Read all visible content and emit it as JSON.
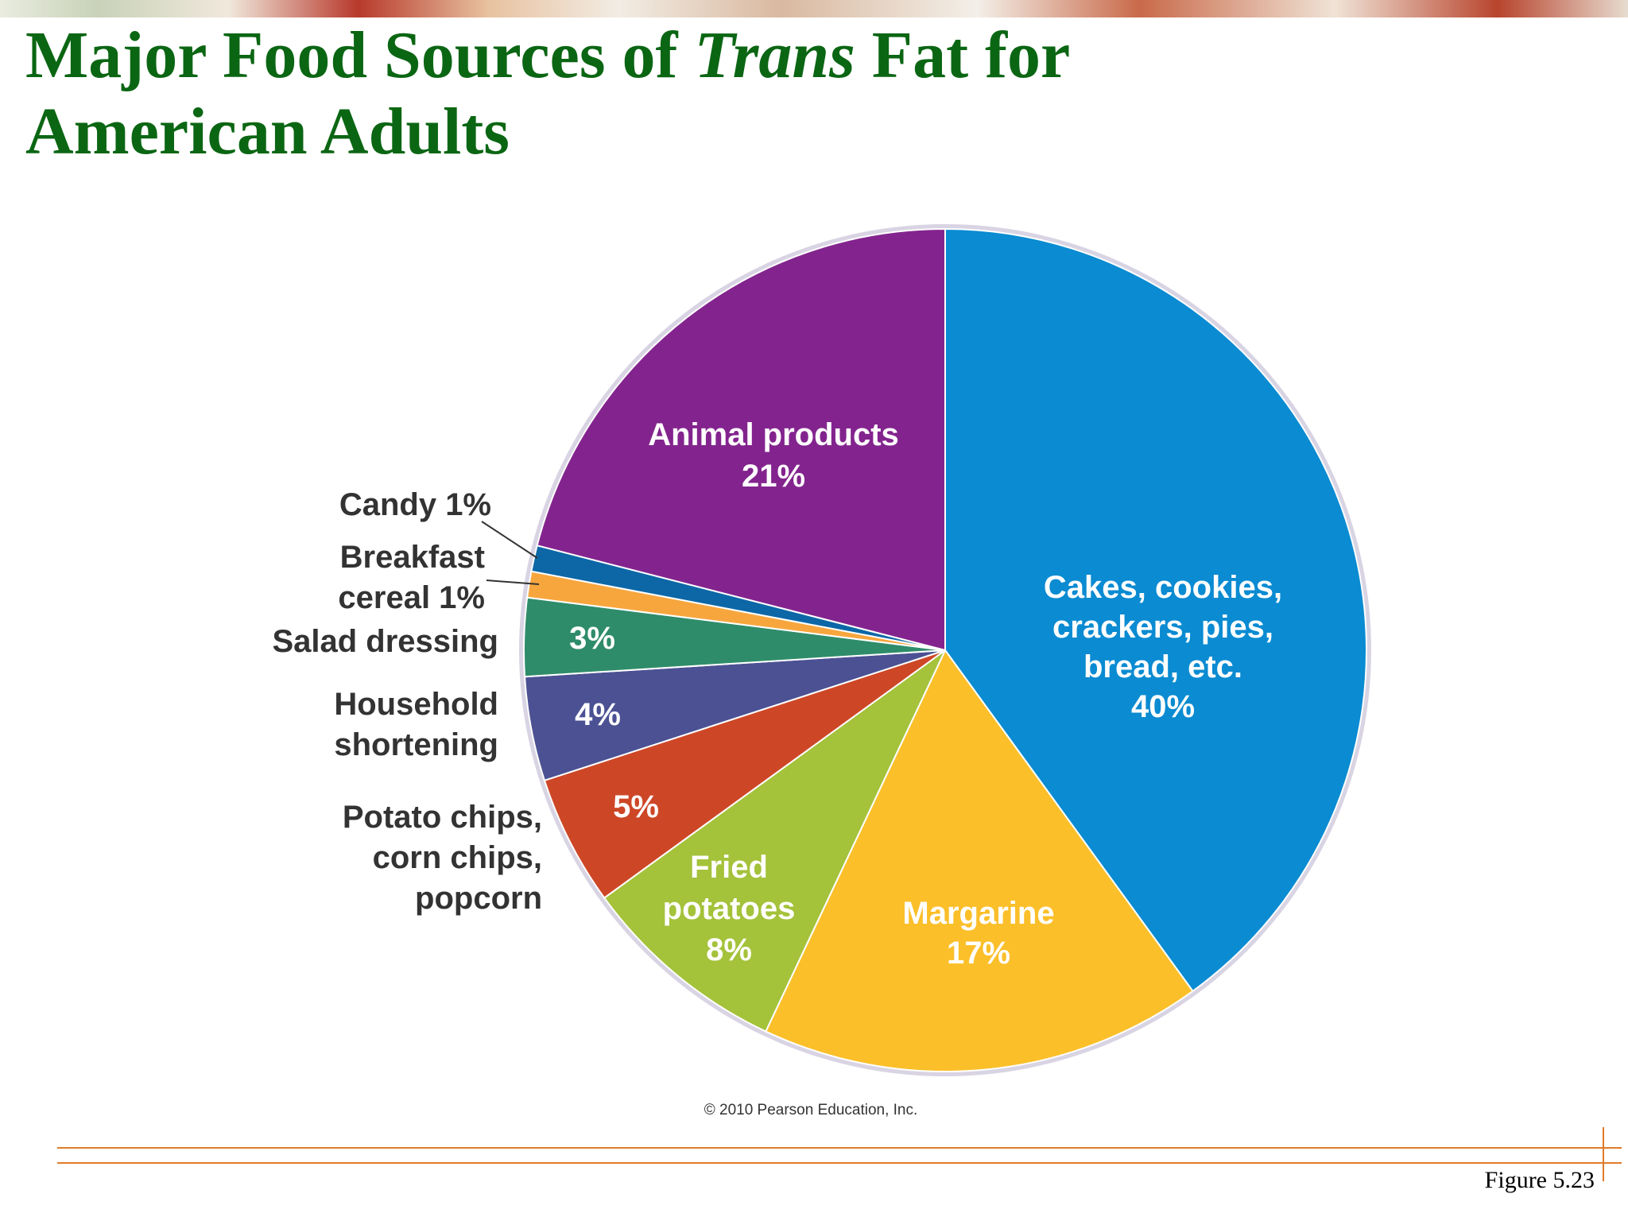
{
  "page": {
    "title_prefix": "Major Food Sources of ",
    "title_italic": "Trans",
    "title_suffix": " Fat for American Adults",
    "copyright": "© 2010 Pearson Education, Inc.",
    "figure_label": "Figure 5.23",
    "title_color": "#0b6613",
    "rule_color": "#e07b2a"
  },
  "chart_data": {
    "type": "pie",
    "title": "Major Food Sources of Trans Fat for American Adults",
    "start": "12 o'clock",
    "direction": "clockwise",
    "slices": [
      {
        "label": "Cakes, cookies, crackers, pies, bread, etc.",
        "lines": [
          "Cakes, cookies,",
          "crackers, pies,",
          "bread, etc."
        ],
        "value": 40,
        "value_label": "40%",
        "color": "#0a8bd2",
        "label_position": "inside"
      },
      {
        "label": "Margarine",
        "lines": [
          "Margarine"
        ],
        "value": 17,
        "value_label": "17%",
        "color": "#fbbf2a",
        "label_position": "inside"
      },
      {
        "label": "Fried potatoes",
        "lines": [
          "Fried",
          "potatoes"
        ],
        "value": 8,
        "value_label": "8%",
        "color": "#a4c23a",
        "label_position": "inside"
      },
      {
        "label": "Potato chips, corn chips, popcorn",
        "lines": [
          "Potato chips,",
          "corn chips,",
          "popcorn"
        ],
        "value": 5,
        "value_label": "5%",
        "color": "#cd4727",
        "label_position": "outside"
      },
      {
        "label": "Household shortening",
        "lines": [
          "Household",
          "shortening"
        ],
        "value": 4,
        "value_label": "4%",
        "color": "#4b5193",
        "label_position": "outside"
      },
      {
        "label": "Salad dressing",
        "lines": [
          "Salad dressing"
        ],
        "value": 3,
        "value_label": "3%",
        "color": "#2f8c6a",
        "label_position": "outside"
      },
      {
        "label": "Breakfast cereal",
        "lines": [
          "Breakfast",
          "cereal 1%"
        ],
        "value": 1,
        "value_label": "1%",
        "color": "#f7a63e",
        "label_position": "outside-leader"
      },
      {
        "label": "Candy",
        "lines": [
          "Candy 1%"
        ],
        "value": 1,
        "value_label": "1%",
        "color": "#0d67a6",
        "label_position": "outside-leader"
      },
      {
        "label": "Animal products",
        "lines": [
          "Animal products"
        ],
        "value": 21,
        "value_label": "21%",
        "color": "#83248e",
        "label_position": "inside"
      }
    ],
    "total": 100
  }
}
